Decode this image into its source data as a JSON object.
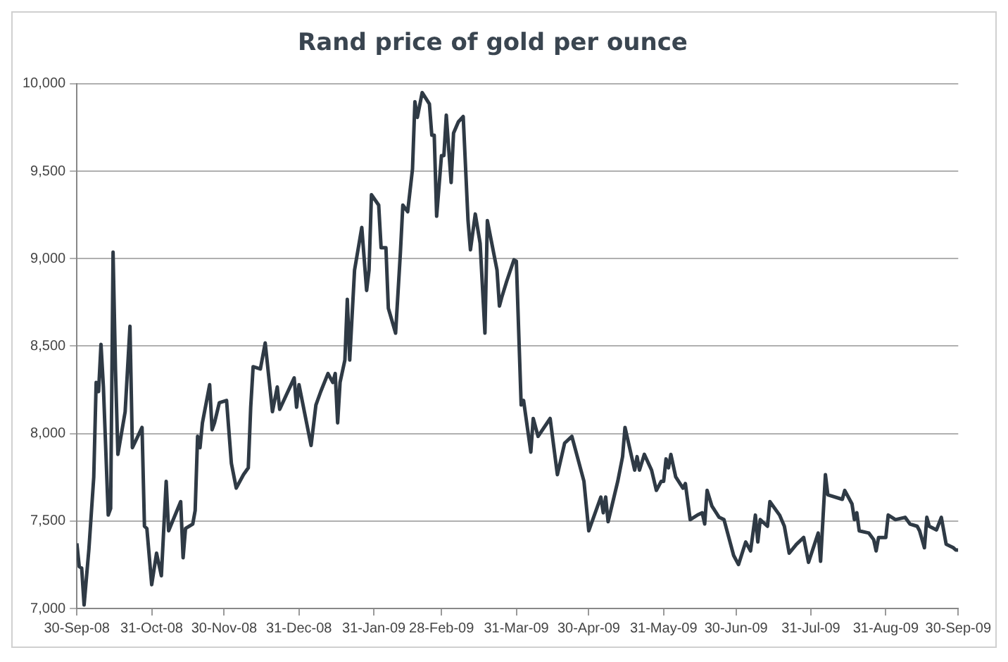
{
  "chart_data": {
    "type": "line",
    "title": "Rand price of gold per ounce",
    "x": [
      "2008-09-30",
      "2008-10-01",
      "2008-10-02",
      "2008-10-03",
      "2008-10-05",
      "2008-10-07",
      "2008-10-08",
      "2008-10-09",
      "2008-10-10",
      "2008-10-11",
      "2008-10-13",
      "2008-10-14",
      "2008-10-15",
      "2008-10-16",
      "2008-10-17",
      "2008-10-20",
      "2008-10-22",
      "2008-10-23",
      "2008-10-27",
      "2008-10-28",
      "2008-10-29",
      "2008-10-31",
      "2008-11-02",
      "2008-11-04",
      "2008-11-06",
      "2008-11-07",
      "2008-11-12",
      "2008-11-13",
      "2008-11-14",
      "2008-11-17",
      "2008-11-18",
      "2008-11-19",
      "2008-11-20",
      "2008-11-21",
      "2008-11-24",
      "2008-11-25",
      "2008-11-26",
      "2008-11-28",
      "2008-12-01",
      "2008-12-03",
      "2008-12-05",
      "2008-12-08",
      "2008-12-10",
      "2008-12-11",
      "2008-12-12",
      "2008-12-15",
      "2008-12-17",
      "2008-12-20",
      "2008-12-22",
      "2008-12-23",
      "2008-12-29",
      "2008-12-30",
      "2008-12-31",
      "2009-01-05",
      "2009-01-07",
      "2009-01-09",
      "2009-01-12",
      "2009-01-14",
      "2009-01-15",
      "2009-01-16",
      "2009-01-17",
      "2009-01-19",
      "2009-01-20",
      "2009-01-21",
      "2009-01-23",
      "2009-01-26",
      "2009-01-28",
      "2009-01-29",
      "2009-01-30",
      "2009-02-02",
      "2009-02-03",
      "2009-02-05",
      "2009-02-06",
      "2009-02-09",
      "2009-02-11",
      "2009-02-12",
      "2009-02-14",
      "2009-02-16",
      "2009-02-17",
      "2009-02-18",
      "2009-02-20",
      "2009-02-23",
      "2009-02-24",
      "2009-02-25",
      "2009-02-26",
      "2009-02-28",
      "2009-03-01",
      "2009-03-02",
      "2009-03-04",
      "2009-03-05",
      "2009-03-07",
      "2009-03-09",
      "2009-03-11",
      "2009-03-12",
      "2009-03-14",
      "2009-03-16",
      "2009-03-18",
      "2009-03-19",
      "2009-03-23",
      "2009-03-24",
      "2009-03-25",
      "2009-03-27",
      "2009-03-30",
      "2009-03-31",
      "2009-04-02",
      "2009-04-03",
      "2009-04-06",
      "2009-04-07",
      "2009-04-09",
      "2009-04-14",
      "2009-04-17",
      "2009-04-20",
      "2009-04-23",
      "2009-04-25",
      "2009-04-28",
      "2009-04-30",
      "2009-05-05",
      "2009-05-06",
      "2009-05-07",
      "2009-05-08",
      "2009-05-12",
      "2009-05-14",
      "2009-05-15",
      "2009-05-19",
      "2009-05-20",
      "2009-05-21",
      "2009-05-23",
      "2009-05-26",
      "2009-05-28",
      "2009-05-30",
      "2009-05-31",
      "2009-06-01",
      "2009-06-02",
      "2009-06-03",
      "2009-06-05",
      "2009-06-08",
      "2009-06-09",
      "2009-06-11",
      "2009-06-14",
      "2009-06-16",
      "2009-06-17",
      "2009-06-18",
      "2009-06-20",
      "2009-06-23",
      "2009-06-25",
      "2009-06-29",
      "2009-07-01",
      "2009-07-04",
      "2009-07-06",
      "2009-07-08",
      "2009-07-09",
      "2009-07-10",
      "2009-07-13",
      "2009-07-14",
      "2009-07-18",
      "2009-07-20",
      "2009-07-22",
      "2009-07-25",
      "2009-07-28",
      "2009-07-30",
      "2009-08-03",
      "2009-08-04",
      "2009-08-06",
      "2009-08-07",
      "2009-08-13",
      "2009-08-14",
      "2009-08-17",
      "2009-08-18",
      "2009-08-19",
      "2009-08-20",
      "2009-08-24",
      "2009-08-26",
      "2009-08-27",
      "2009-08-28",
      "2009-08-31",
      "2009-09-01",
      "2009-09-04",
      "2009-09-08",
      "2009-09-10",
      "2009-09-13",
      "2009-09-14",
      "2009-09-16",
      "2009-09-17",
      "2009-09-18",
      "2009-09-21",
      "2009-09-23",
      "2009-09-25",
      "2009-09-28",
      "2009-09-29",
      "2009-09-30"
    ],
    "series": [
      {
        "color": "#2f3a45",
        "values": [
          7372,
          7239,
          7231,
          7020,
          7340,
          7750,
          8292,
          8240,
          8510,
          8266,
          7534,
          7572,
          9037,
          8369,
          7881,
          8125,
          8613,
          7919,
          8035,
          7470,
          7457,
          7136,
          7316,
          7187,
          7727,
          7444,
          7611,
          7290,
          7457,
          7483,
          7560,
          7984,
          7919,
          8061,
          8279,
          8022,
          8061,
          8176,
          8189,
          7829,
          7688,
          7765,
          7804,
          8150,
          8382,
          8369,
          8518,
          8125,
          8266,
          8138,
          8318,
          8150,
          8279,
          7932,
          8163,
          8240,
          8343,
          8292,
          8343,
          8061,
          8292,
          8420,
          8767,
          8420,
          8934,
          9178,
          8818,
          8934,
          9365,
          9306,
          9062,
          9062,
          8716,
          8574,
          9037,
          9306,
          9268,
          9512,
          9897,
          9807,
          9949,
          9884,
          9705,
          9705,
          9242,
          9589,
          9589,
          9820,
          9435,
          9717,
          9782,
          9812,
          9217,
          9050,
          9255,
          9088,
          8574,
          9217,
          8934,
          8729,
          8780,
          8870,
          8993,
          8985,
          8163,
          8189,
          7894,
          8086,
          7984,
          8086,
          7765,
          7945,
          7984,
          7881,
          7727,
          7444,
          7637,
          7547,
          7637,
          7496,
          7727,
          7868,
          8035,
          7791,
          7868,
          7791,
          7881,
          7791,
          7675,
          7727,
          7727,
          7855,
          7804,
          7881,
          7752,
          7688,
          7714,
          7508,
          7534,
          7547,
          7483,
          7675,
          7585,
          7521,
          7508,
          7303,
          7251,
          7380,
          7329,
          7534,
          7380,
          7508,
          7470,
          7611,
          7534,
          7470,
          7316,
          7367,
          7406,
          7264,
          7431,
          7270,
          7765,
          7650,
          7624,
          7675,
          7598,
          7508,
          7547,
          7444,
          7431,
          7393,
          7329,
          7406,
          7406,
          7534,
          7508,
          7521,
          7483,
          7470,
          7444,
          7347,
          7521,
          7470,
          7449,
          7521,
          7367,
          7347,
          7334,
          7334
        ]
      }
    ],
    "xlim": [
      "2008-09-30",
      "2009-09-30"
    ],
    "xticks": [
      {
        "value": "2008-09-30",
        "label": "30-Sep-08"
      },
      {
        "value": "2008-10-31",
        "label": "31-Oct-08"
      },
      {
        "value": "2008-11-30",
        "label": "30-Nov-08"
      },
      {
        "value": "2008-12-31",
        "label": "31-Dec-08"
      },
      {
        "value": "2009-01-31",
        "label": "31-Jan-09"
      },
      {
        "value": "2009-02-28",
        "label": "28-Feb-09"
      },
      {
        "value": "2009-03-31",
        "label": "31-Mar-09"
      },
      {
        "value": "2009-04-30",
        "label": "30-Apr-09"
      },
      {
        "value": "2009-05-31",
        "label": "31-May-09"
      },
      {
        "value": "2009-06-30",
        "label": "30-Jun-09"
      },
      {
        "value": "2009-07-31",
        "label": "31-Jul-09"
      },
      {
        "value": "2009-08-31",
        "label": "31-Aug-09"
      },
      {
        "value": "2009-09-30",
        "label": "30-Sep-09"
      }
    ],
    "ylim": [
      7000,
      10000
    ],
    "yticks": [
      {
        "value": 7000,
        "label": "7,000"
      },
      {
        "value": 7500,
        "label": "7,500"
      },
      {
        "value": 8000,
        "label": "8,000"
      },
      {
        "value": 8500,
        "label": "8,500"
      },
      {
        "value": 9000,
        "label": "9,000"
      },
      {
        "value": 9500,
        "label": "9,500"
      },
      {
        "value": 10000,
        "label": "10,000"
      }
    ],
    "grid": "y",
    "marker": "none",
    "line_style": "solid",
    "legend": false
  }
}
